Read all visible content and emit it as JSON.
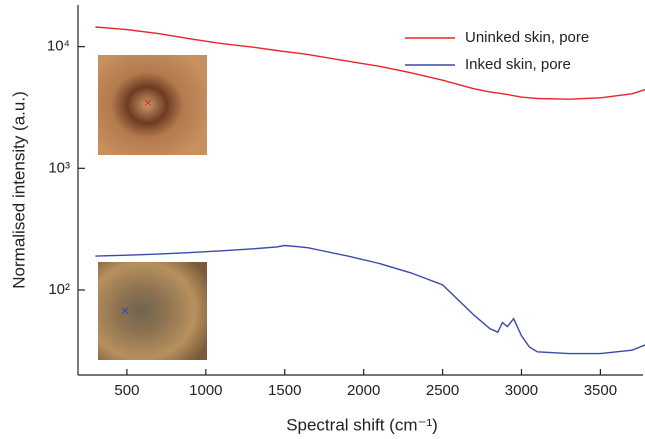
{
  "chart_data": {
    "type": "line",
    "xlabel": "Spectral shift (cm⁻¹)",
    "ylabel": "Normalised intensity (a.u.)",
    "x": [
      300,
      500,
      700,
      900,
      1100,
      1300,
      1450,
      1500,
      1600,
      1650,
      1700,
      1900,
      2100,
      2300,
      2500,
      2700,
      2800,
      2850,
      2880,
      2910,
      2950,
      3000,
      3050,
      3100,
      3300,
      3500,
      3700,
      3800
    ],
    "series": [
      {
        "name": "Uninked skin, pore",
        "color": "#e8262a",
        "values": [
          14500,
          13800,
          12800,
          11600,
          10600,
          9900,
          9300,
          9100,
          8800,
          8600,
          8400,
          7600,
          6900,
          6100,
          5300,
          4500,
          4250,
          4150,
          4100,
          4050,
          3950,
          3850,
          3800,
          3750,
          3700,
          3800,
          4100,
          4500
        ]
      },
      {
        "name": "Inked skin, pore",
        "color": "#3a49a8",
        "values": [
          190,
          193,
          197,
          203,
          210,
          218,
          226,
          232,
          226,
          222,
          215,
          190,
          165,
          138,
          110,
          62,
          48,
          45,
          54,
          50,
          58,
          42,
          34,
          31,
          30,
          30,
          32,
          36
        ]
      }
    ],
    "xlim": [
      190,
      3770
    ],
    "ylim": [
      20,
      22000
    ],
    "ylog": true,
    "xticks": [
      500,
      1000,
      1500,
      2000,
      2500,
      3000,
      3500
    ],
    "yticks": [
      {
        "value": 100,
        "label": "10²"
      },
      {
        "value": 1000,
        "label": "10³"
      },
      {
        "value": 10000,
        "label": "10⁴"
      }
    ],
    "legend": "upper right"
  }
}
